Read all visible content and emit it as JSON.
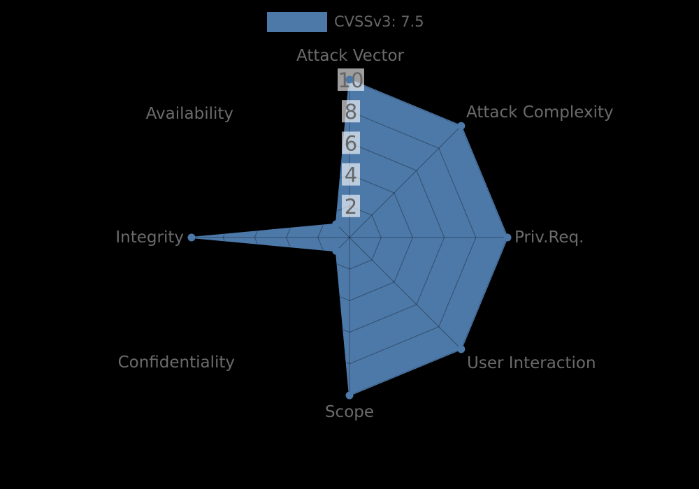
{
  "legend": {
    "label": "CVSSv3: 7.5",
    "swatch_color": "#4d79a9"
  },
  "chart_data": {
    "type": "radar",
    "title": "CVSSv3: 7.5",
    "axes": [
      "Attack Vector",
      "Attack Complexity",
      "Priv.Req.",
      "User Interaction",
      "Scope",
      "Confidentiality",
      "Integrity",
      "Availability"
    ],
    "series": [
      {
        "name": "CVSSv3: 7.5",
        "values": [
          10,
          10,
          10,
          10,
          10,
          1.2,
          10,
          1.2
        ],
        "color": "#4d79a9"
      }
    ],
    "rticks": [
      2,
      4,
      6,
      8,
      10
    ],
    "rmin": 0,
    "rmax": 10,
    "grid": "on",
    "legend_position": "top-center",
    "background": "#000000"
  },
  "colors": {
    "fill": "#4d79a9",
    "grid_line": "rgba(0,0,0,0.3)",
    "tick_box": "rgba(255,255,255,0.62)",
    "tick_text": "#666666",
    "axis_label_text": "#6b6b6b",
    "legend_text": "#666666",
    "background": "#000000"
  }
}
